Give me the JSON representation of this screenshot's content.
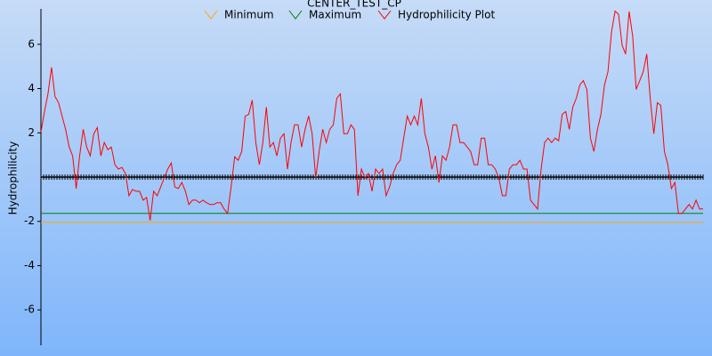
{
  "chart_data": {
    "type": "line",
    "title": "CENTER_TEST_CP",
    "ylabel": "Hydrophilicity",
    "ylim": [
      -7.6,
      7.6
    ],
    "yticks": [
      -6,
      -4,
      -2,
      2,
      4,
      6
    ],
    "reference_lines": [
      {
        "name": "Minimum",
        "color": "#ffa500",
        "value": -2.04
      },
      {
        "name": "Maximum",
        "color": "#008000",
        "value": -1.64
      }
    ],
    "series": [
      {
        "name": "Hydrophilicity Plot",
        "color": "#ff0000",
        "values": [
          2.04,
          2.96,
          3.76,
          4.96,
          3.64,
          3.36,
          2.76,
          2.16,
          1.36,
          0.96,
          -0.52,
          0.96,
          2.16,
          1.36,
          0.96,
          1.96,
          2.24,
          0.96,
          1.56,
          1.24,
          1.36,
          0.56,
          0.36,
          0.44,
          0.16,
          -0.84,
          -0.56,
          -0.64,
          -0.64,
          -1.04,
          -0.92,
          -1.96,
          -0.64,
          -0.84,
          -0.44,
          -0.04,
          0.36,
          0.64,
          -0.44,
          -0.52,
          -0.24,
          -0.64,
          -1.24,
          -1.04,
          -1.04,
          -1.16,
          -1.04,
          -1.16,
          -1.24,
          -1.24,
          -1.16,
          -1.16,
          -1.44,
          -1.64,
          -0.44,
          0.92,
          0.76,
          1.16,
          2.76,
          2.84,
          3.48,
          1.56,
          0.56,
          1.56,
          3.16,
          1.36,
          1.56,
          0.96,
          1.76,
          1.96,
          0.36,
          1.56,
          2.36,
          2.36,
          1.36,
          2.16,
          2.76,
          1.96,
          -0.04,
          1.16,
          2.16,
          1.56,
          2.16,
          2.36,
          3.56,
          3.76,
          1.96,
          1.96,
          2.36,
          2.16,
          -0.84,
          0.36,
          -0.04,
          0.16,
          -0.64,
          0.36,
          0.16,
          0.36,
          -0.84,
          -0.44,
          0.16,
          0.56,
          0.76,
          1.76,
          2.76,
          2.36,
          2.76,
          2.36,
          3.56,
          1.96,
          1.36,
          0.36,
          0.96,
          -0.24,
          0.96,
          0.76,
          1.36,
          2.36,
          2.36,
          1.56,
          1.56,
          1.36,
          1.16,
          0.56,
          0.56,
          1.76,
          1.76,
          0.56,
          0.56,
          0.36,
          -0.04,
          -0.84,
          -0.84,
          0.36,
          0.56,
          0.56,
          0.76,
          0.36,
          0.36,
          -1.04,
          -1.24,
          -1.44,
          0.36,
          1.56,
          1.76,
          1.56,
          1.76,
          1.64,
          2.84,
          2.96,
          2.16,
          3.16,
          3.56,
          4.16,
          4.36,
          3.96,
          1.76,
          1.16,
          2.16,
          2.84,
          4.16,
          4.76,
          6.56,
          7.5,
          7.36,
          5.96,
          5.56,
          7.48,
          6.36,
          3.96,
          4.36,
          4.76,
          5.56,
          3.56,
          1.96,
          3.36,
          3.24,
          1.16,
          0.56,
          -0.52,
          -0.24,
          -1.64,
          -1.64,
          -1.44,
          -1.24,
          -1.44,
          -1.04,
          -1.44,
          -1.44
        ]
      }
    ]
  }
}
